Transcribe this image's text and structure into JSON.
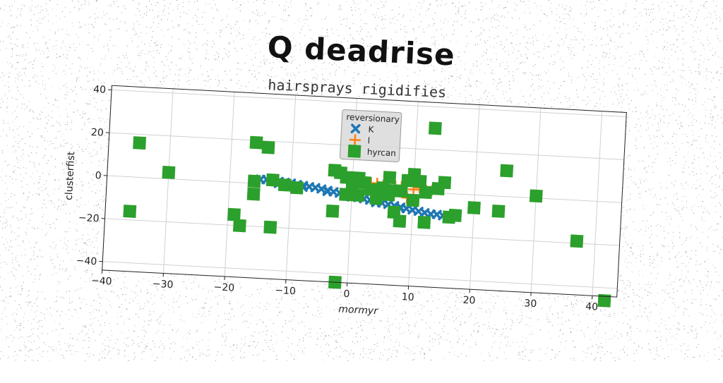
{
  "header": {
    "title": "Q deadrise",
    "subtitle": "hairsprays rigidifies"
  },
  "chart_data": {
    "type": "scatter",
    "title": "Q deadrise",
    "subtitle": "hairsprays rigidifies",
    "xlabel": "mormyr",
    "ylabel": "clusterfist",
    "xlim": [
      -40,
      44
    ],
    "ylim": [
      -44,
      42
    ],
    "xticks": [
      -40,
      -30,
      -20,
      -10,
      0,
      10,
      20,
      30,
      40
    ],
    "yticks": [
      -40,
      -20,
      0,
      20,
      40
    ],
    "grid": true,
    "legend": {
      "title": "reversionary",
      "placement": "top-center"
    },
    "series": [
      {
        "name": "K",
        "marker": "x",
        "color": "#1f77b4",
        "points": [
          [
            -15,
            2
          ],
          [
            -14,
            2
          ],
          [
            -13,
            1.8
          ],
          [
            -12,
            1.5
          ],
          [
            -11,
            1.2
          ],
          [
            -10,
            1
          ],
          [
            -9,
            0.5
          ],
          [
            -8,
            0.2
          ],
          [
            -7,
            -0.2
          ],
          [
            -6,
            -0.5
          ],
          [
            -5,
            -1
          ],
          [
            -4,
            -1.5
          ],
          [
            -3,
            -2
          ],
          [
            -2,
            -2.5
          ],
          [
            -1,
            -3
          ],
          [
            0,
            -3.5
          ],
          [
            1,
            -4
          ],
          [
            2,
            -4.5
          ],
          [
            3,
            -5
          ],
          [
            4,
            -5.5
          ],
          [
            5,
            -6
          ],
          [
            6,
            -6.5
          ],
          [
            7,
            -7
          ],
          [
            8,
            -7.5
          ],
          [
            9,
            -8
          ],
          [
            10,
            -8.5
          ],
          [
            11,
            -9
          ],
          [
            12,
            -9.5
          ],
          [
            13,
            -10
          ],
          [
            14,
            -10
          ],
          [
            15,
            -10.5
          ],
          [
            -12,
            0.5
          ],
          [
            -8,
            -0.5
          ],
          [
            -4,
            -2
          ],
          [
            0,
            -4
          ],
          [
            4,
            -6
          ],
          [
            8,
            -8
          ]
        ]
      },
      {
        "name": "l",
        "marker": "plus",
        "color": "#ff7f0e",
        "points": [
          [
            3,
            3
          ],
          [
            4,
            3
          ],
          [
            5,
            2
          ],
          [
            7,
            2
          ],
          [
            8,
            2
          ],
          [
            10,
            1
          ],
          [
            11,
            2
          ],
          [
            12,
            1
          ],
          [
            9,
            -3
          ],
          [
            4,
            0
          ],
          [
            13,
            1
          ]
        ]
      },
      {
        "name": "hyrcan",
        "marker": "square",
        "color": "#2ca02c",
        "points": [
          [
            -35,
            16
          ],
          [
            -30,
            3
          ],
          [
            -36,
            -16
          ],
          [
            -19,
            -15
          ],
          [
            -18,
            -20
          ],
          [
            -16,
            19
          ],
          [
            -14,
            17
          ],
          [
            -16,
            1
          ],
          [
            -16,
            -5
          ],
          [
            -13,
            -20
          ],
          [
            -13,
            2
          ],
          [
            -11,
            0
          ],
          [
            -9,
            -1
          ],
          [
            -3,
            8
          ],
          [
            -2,
            7
          ],
          [
            -1,
            5
          ],
          [
            -3,
            -11
          ],
          [
            -1,
            -3
          ],
          [
            0,
            -2
          ],
          [
            0,
            0
          ],
          [
            1,
            5
          ],
          [
            2,
            3
          ],
          [
            1,
            -3
          ],
          [
            3,
            0
          ],
          [
            4,
            -4
          ],
          [
            5,
            1
          ],
          [
            6,
            -2
          ],
          [
            7,
            0
          ],
          [
            8,
            0
          ],
          [
            7,
            -10
          ],
          [
            8,
            -14
          ],
          [
            9,
            5
          ],
          [
            10,
            8
          ],
          [
            11,
            5
          ],
          [
            10,
            -4
          ],
          [
            12,
            -14
          ],
          [
            12,
            0
          ],
          [
            14,
            2
          ],
          [
            15,
            5
          ],
          [
            16,
            -11
          ],
          [
            17,
            -10
          ],
          [
            20,
            -6
          ],
          [
            24,
            -7
          ],
          [
            25,
            12
          ],
          [
            30,
            1
          ],
          [
            37,
            -19
          ],
          [
            42,
            -46
          ],
          [
            13,
            30
          ],
          [
            -2,
            -44
          ],
          [
            6,
            6
          ]
        ]
      }
    ]
  }
}
